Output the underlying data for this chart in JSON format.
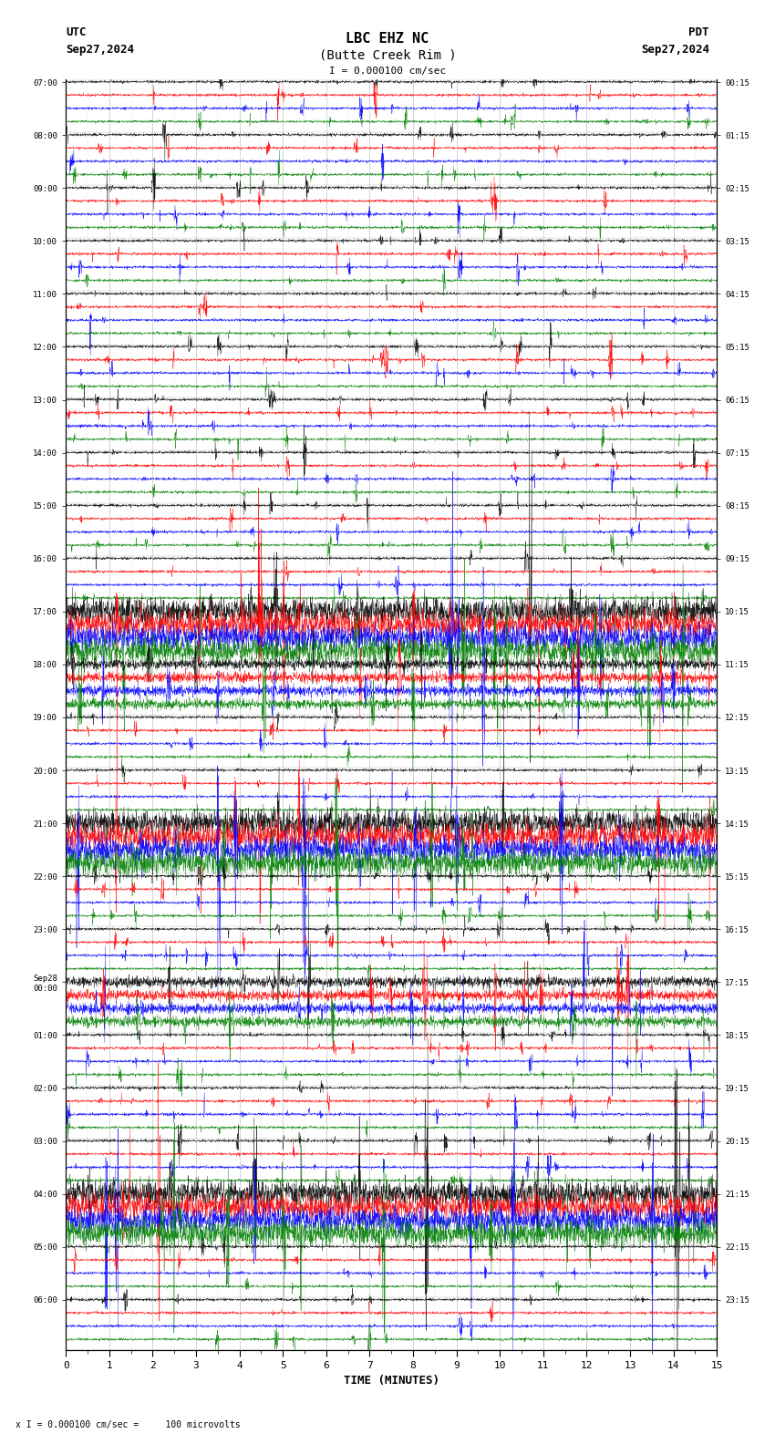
{
  "title_line1": "LBC EHZ NC",
  "title_line2": "(Butte Creek Rim )",
  "scale_label": "I = 0.000100 cm/sec",
  "utc_label": "UTC",
  "pdt_label": "PDT",
  "date_left": "Sep27,2024",
  "date_right": "Sep27,2024",
  "xlabel": "TIME (MINUTES)",
  "bottom_note": "x I = 0.000100 cm/sec =     100 microvolts",
  "utc_start_labels": [
    "07:00",
    "08:00",
    "09:00",
    "10:00",
    "11:00",
    "12:00",
    "13:00",
    "14:00",
    "15:00",
    "16:00",
    "17:00",
    "18:00",
    "19:00",
    "20:00",
    "21:00",
    "22:00",
    "23:00",
    "Sep28\n00:00",
    "01:00",
    "02:00",
    "03:00",
    "04:00",
    "05:00",
    "06:00"
  ],
  "pdt_start_labels": [
    "00:15",
    "01:15",
    "02:15",
    "03:15",
    "04:15",
    "05:15",
    "06:15",
    "07:15",
    "08:15",
    "09:15",
    "10:15",
    "11:15",
    "12:15",
    "13:15",
    "14:15",
    "15:15",
    "16:15",
    "17:15",
    "18:15",
    "19:15",
    "20:15",
    "21:15",
    "22:15",
    "23:15"
  ],
  "num_rows": 24,
  "traces_per_row": 4,
  "trace_colors": [
    "black",
    "red",
    "blue",
    "green"
  ],
  "bg_color": "white",
  "grid_color": "#888888",
  "xlim": [
    0,
    15
  ],
  "xticks": [
    0,
    1,
    2,
    3,
    4,
    5,
    6,
    7,
    8,
    9,
    10,
    11,
    12,
    13,
    14,
    15
  ],
  "trace_amplitude_base": 0.04,
  "noise_scale": 0.012,
  "fig_width": 8.5,
  "fig_height": 15.84,
  "large_event_rows": [
    10,
    14,
    21
  ],
  "large_event_scale": 10,
  "medium_event_rows": [
    11,
    17
  ],
  "medium_event_scale": 4
}
